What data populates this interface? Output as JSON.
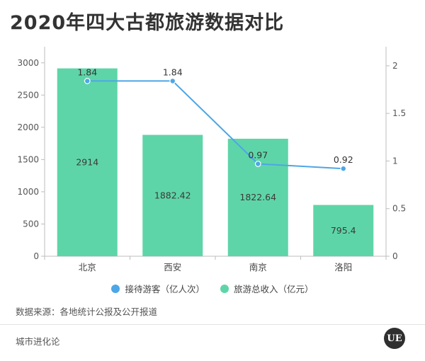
{
  "title": "2020年四大古都旅游数据对比",
  "legend": [
    {
      "label": "接待游客（亿人次）",
      "color": "#4da6e6"
    },
    {
      "label": "旅游总收入（亿元）",
      "color": "#5ed5a8"
    }
  ],
  "source": "数据来源：各地统计公报及公开报道",
  "footer_brand": "城市进化论",
  "logo_text": "UE",
  "chart_data": {
    "type": "bar",
    "categories": [
      "北京",
      "西安",
      "南京",
      "洛阳"
    ],
    "series": [
      {
        "name": "旅游总收入（亿元）",
        "type": "bar",
        "axis": "left",
        "values": [
          2914,
          1882.42,
          1822.64,
          795.4
        ],
        "labels": [
          "2914",
          "1882.42",
          "1822.64",
          "795.4"
        ],
        "color": "#5ed5a8"
      },
      {
        "name": "接待游客（亿人次）",
        "type": "line",
        "axis": "right",
        "values": [
          1.84,
          1.84,
          0.97,
          0.92
        ],
        "labels": [
          "1.84",
          "1.84",
          "0.97",
          "0.92"
        ],
        "color": "#4da6e6"
      }
    ],
    "y_left": {
      "ylim": [
        0,
        3250
      ],
      "ticks": [
        "0",
        "500",
        "1000",
        "1500",
        "2000",
        "2500",
        "3000"
      ]
    },
    "y_right": {
      "ylim": [
        0,
        2.2
      ],
      "ticks": [
        "0",
        "0.5",
        "1",
        "1.5",
        "2"
      ]
    },
    "grid": false
  }
}
